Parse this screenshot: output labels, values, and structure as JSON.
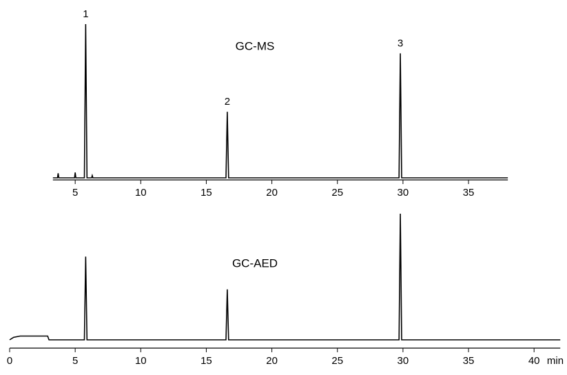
{
  "chart_data": [
    {
      "type": "line",
      "title": "GC-MS",
      "x": [
        3.3,
        3.65,
        3.7,
        3.75,
        4.95,
        5.0,
        5.05,
        5.7,
        5.8,
        5.9,
        6.25,
        6.3,
        6.35,
        16.5,
        16.6,
        16.7,
        29.7,
        29.8,
        29.9,
        38
      ],
      "series": [
        {
          "color": "#000000",
          "values": [
            0,
            0,
            3,
            0,
            0,
            3.5,
            0,
            0,
            100,
            0,
            0,
            1.5,
            0,
            0,
            43,
            0,
            0,
            81,
            0,
            0
          ]
        }
      ],
      "annotations": [
        {
          "text": "1",
          "x": 5.8,
          "y": 100
        },
        {
          "text": "2",
          "x": 16.6,
          "y": 43
        },
        {
          "text": "3",
          "x": 29.8,
          "y": 81
        }
      ],
      "xlim": [
        3.3,
        38
      ],
      "xticks": [
        5,
        10,
        15,
        20,
        25,
        30,
        35
      ],
      "ylim": [
        0,
        100
      ]
    },
    {
      "type": "line",
      "title": "GC-AED",
      "xlabel": "min",
      "x": [
        0,
        0.3,
        0.8,
        2.9,
        3.0,
        5.7,
        5.8,
        5.9,
        16.5,
        16.6,
        16.7,
        29.7,
        29.8,
        29.9,
        42
      ],
      "series": [
        {
          "color": "#000000",
          "values": [
            0,
            2,
            3,
            3,
            0,
            0,
            66,
            0,
            0,
            40,
            0,
            0,
            100,
            0,
            0
          ]
        }
      ],
      "xlim": [
        0,
        42
      ],
      "xticks": [
        0,
        5,
        10,
        15,
        20,
        25,
        30,
        35,
        40
      ],
      "ylim": [
        0,
        100
      ]
    }
  ]
}
